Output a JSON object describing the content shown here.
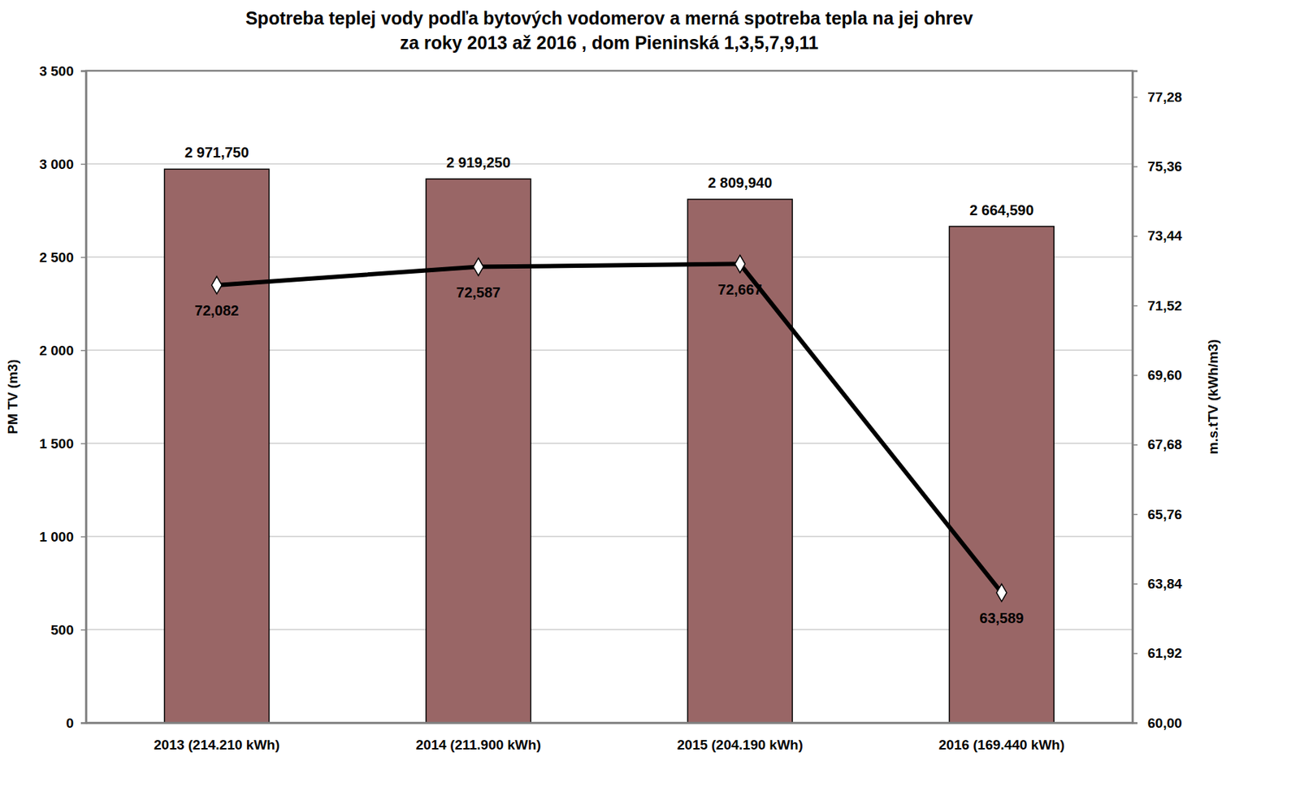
{
  "chart_data": {
    "type": "bar",
    "title": "Spotreba teplej vody podľa bytových vodomerov a merná spotreba tepla na jej ohrev\nza roky 2013 až 2016 , dom Pieninská 1,3,5,7,9,11",
    "categories": [
      "2013 (214.210 kWh)",
      "2014 (211.900 kWh)",
      "2015 (204.190 kWh)",
      "2016 (169.440 kWh)"
    ],
    "series": [
      {
        "type": "bar",
        "color": "#996666",
        "values": [
          2971.75,
          2919.25,
          2809.94,
          2664.59
        ],
        "value_labels": [
          "2 971,750",
          "2 919,250",
          "2 809,940",
          "2 664,590"
        ]
      },
      {
        "type": "line",
        "axis": "y2",
        "color": "#000000",
        "marker": "diamond",
        "line_style": "solid",
        "values": [
          72.082,
          72.587,
          72.667,
          63.589
        ],
        "value_labels": [
          "72,082",
          "72,587",
          "72,667",
          "63,589"
        ]
      }
    ],
    "y_label": "PM TV (m3)",
    "y2_label": "m.s.tTV (kWh/m3)",
    "ylim": [
      0,
      3500
    ],
    "yticks": [
      0,
      500,
      {
        "value": 1000,
        "label": "1 000"
      },
      {
        "value": 1500,
        "label": "1 500"
      },
      {
        "value": 2000,
        "label": "2 000"
      },
      {
        "value": 2500,
        "label": "2 500"
      },
      {
        "value": 3000,
        "label": "3 000"
      },
      {
        "value": 3500,
        "label": "3 500"
      }
    ],
    "y2lim": [
      60,
      78
    ],
    "y2ticks": [
      {
        "value": 60,
        "label": "60,00"
      },
      {
        "value": 61.92,
        "label": "61,92"
      },
      {
        "value": 63.84,
        "label": "63,84"
      },
      {
        "value": 65.76,
        "label": "65,76"
      },
      {
        "value": 67.68,
        "label": "67,68"
      },
      {
        "value": 69.6,
        "label": "69,60"
      },
      {
        "value": 71.52,
        "label": "71,52"
      },
      {
        "value": 73.44,
        "label": "73,44"
      },
      {
        "value": 75.36,
        "label": "75,36"
      },
      {
        "value": 77.28,
        "label": "77,28"
      }
    ],
    "grid": true,
    "data_labels": true
  }
}
